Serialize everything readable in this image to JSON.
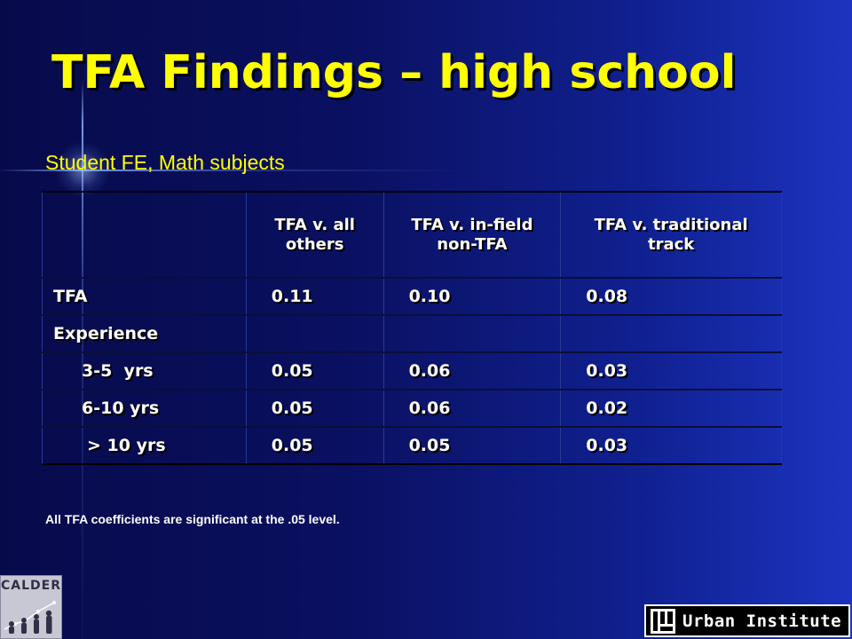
{
  "slide": {
    "title": "TFA Findings – high school",
    "subtitle": "Student FE, Math subjects",
    "footnote": "All TFA coefficients are significant at the .05 level."
  },
  "table": {
    "headers": [
      "",
      "TFA v. all others",
      "TFA v. in-field non-TFA",
      "TFA v. traditional track"
    ],
    "rows": [
      {
        "label": "TFA",
        "values": [
          "0.11",
          "0.10",
          "0.08"
        ]
      },
      {
        "label": "Experience",
        "values": [
          "",
          "",
          ""
        ]
      },
      {
        "label": "3-5  yrs",
        "values": [
          "0.05",
          "0.06",
          "0.03"
        ]
      },
      {
        "label": "6-10 yrs",
        "values": [
          "0.05",
          "0.06",
          "0.02"
        ]
      },
      {
        "label": "> 10 yrs",
        "values": [
          "0.05",
          "0.05",
          "0.03"
        ]
      }
    ]
  },
  "logos": {
    "calder": "CALDER",
    "urban_institute": "Urban Institute"
  },
  "colors": {
    "title": "#ffff00",
    "subtitle": "#ffff00",
    "table_text": "#ffffff",
    "background": "#0a1060"
  }
}
